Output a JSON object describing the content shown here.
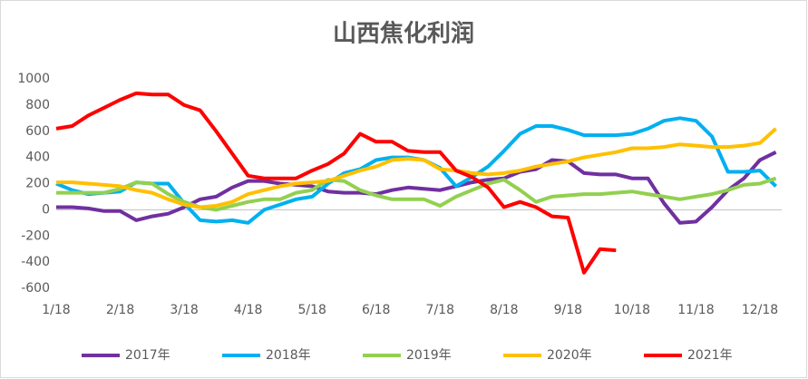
{
  "chart_data": {
    "type": "line",
    "title": "山西焦化利润",
    "categories": [
      "1/18",
      null,
      null,
      null,
      "2/18",
      null,
      null,
      null,
      "3/18",
      null,
      null,
      null,
      "4/18",
      null,
      null,
      null,
      "5/18",
      null,
      null,
      null,
      "6/18",
      null,
      null,
      null,
      "7/18",
      null,
      null,
      null,
      "8/18",
      null,
      null,
      null,
      "9/18",
      null,
      null,
      null,
      "10/18",
      null,
      null,
      null,
      "11/18",
      null,
      null,
      null,
      "12/18",
      null
    ],
    "ylim": [
      -600,
      1000
    ],
    "yticks": [
      -600,
      -400,
      -200,
      0,
      200,
      400,
      600,
      800,
      1000
    ],
    "grid": false,
    "legend": "bottom",
    "series": [
      {
        "name": "2017年",
        "color": "#7030a0",
        "values": [
          20,
          20,
          10,
          -10,
          -10,
          -80,
          -50,
          -30,
          20,
          80,
          100,
          170,
          220,
          220,
          200,
          190,
          180,
          140,
          130,
          130,
          120,
          150,
          170,
          160,
          150,
          180,
          210,
          230,
          240,
          290,
          310,
          380,
          370,
          280,
          270,
          270,
          240,
          240,
          50,
          -100,
          -90,
          20,
          150,
          240,
          380,
          440
        ]
      },
      {
        "name": "2018年",
        "color": "#00b0f0",
        "values": [
          200,
          150,
          120,
          130,
          140,
          210,
          200,
          200,
          50,
          -80,
          -90,
          -80,
          -100,
          0,
          40,
          80,
          100,
          200,
          280,
          310,
          380,
          400,
          400,
          380,
          320,
          180,
          250,
          330,
          450,
          580,
          640,
          640,
          610,
          570,
          570,
          570,
          580,
          620,
          680,
          700,
          680,
          560,
          290,
          290,
          300,
          180
        ]
      },
      {
        "name": "2019年",
        "color": "#92d050",
        "values": [
          130,
          130,
          130,
          130,
          160,
          210,
          200,
          120,
          60,
          20,
          0,
          30,
          60,
          80,
          80,
          130,
          150,
          230,
          220,
          150,
          110,
          80,
          80,
          80,
          30,
          100,
          150,
          200,
          230,
          150,
          60,
          100,
          110,
          120,
          120,
          130,
          140,
          120,
          100,
          80,
          100,
          120,
          150,
          190,
          200,
          240
        ]
      },
      {
        "name": "2020年",
        "color": "#ffc000",
        "values": [
          210,
          210,
          200,
          190,
          180,
          150,
          130,
          80,
          40,
          20,
          30,
          60,
          120,
          150,
          180,
          200,
          210,
          220,
          260,
          300,
          330,
          380,
          390,
          380,
          310,
          300,
          280,
          270,
          280,
          300,
          330,
          350,
          370,
          400,
          420,
          440,
          470,
          470,
          480,
          500,
          490,
          480,
          480,
          490,
          510,
          620
        ]
      },
      {
        "name": "2021年",
        "color": "#ff0000",
        "values": [
          620,
          640,
          720,
          780,
          840,
          890,
          880,
          880,
          800,
          760,
          600,
          430,
          260,
          240,
          240,
          240,
          300,
          350,
          430,
          580,
          520,
          520,
          450,
          440,
          440,
          300,
          250,
          170,
          20,
          60,
          20,
          -50,
          -60,
          -480,
          -300,
          -310,
          null,
          null,
          null,
          null,
          null,
          null,
          null,
          null,
          null,
          null
        ]
      }
    ]
  }
}
